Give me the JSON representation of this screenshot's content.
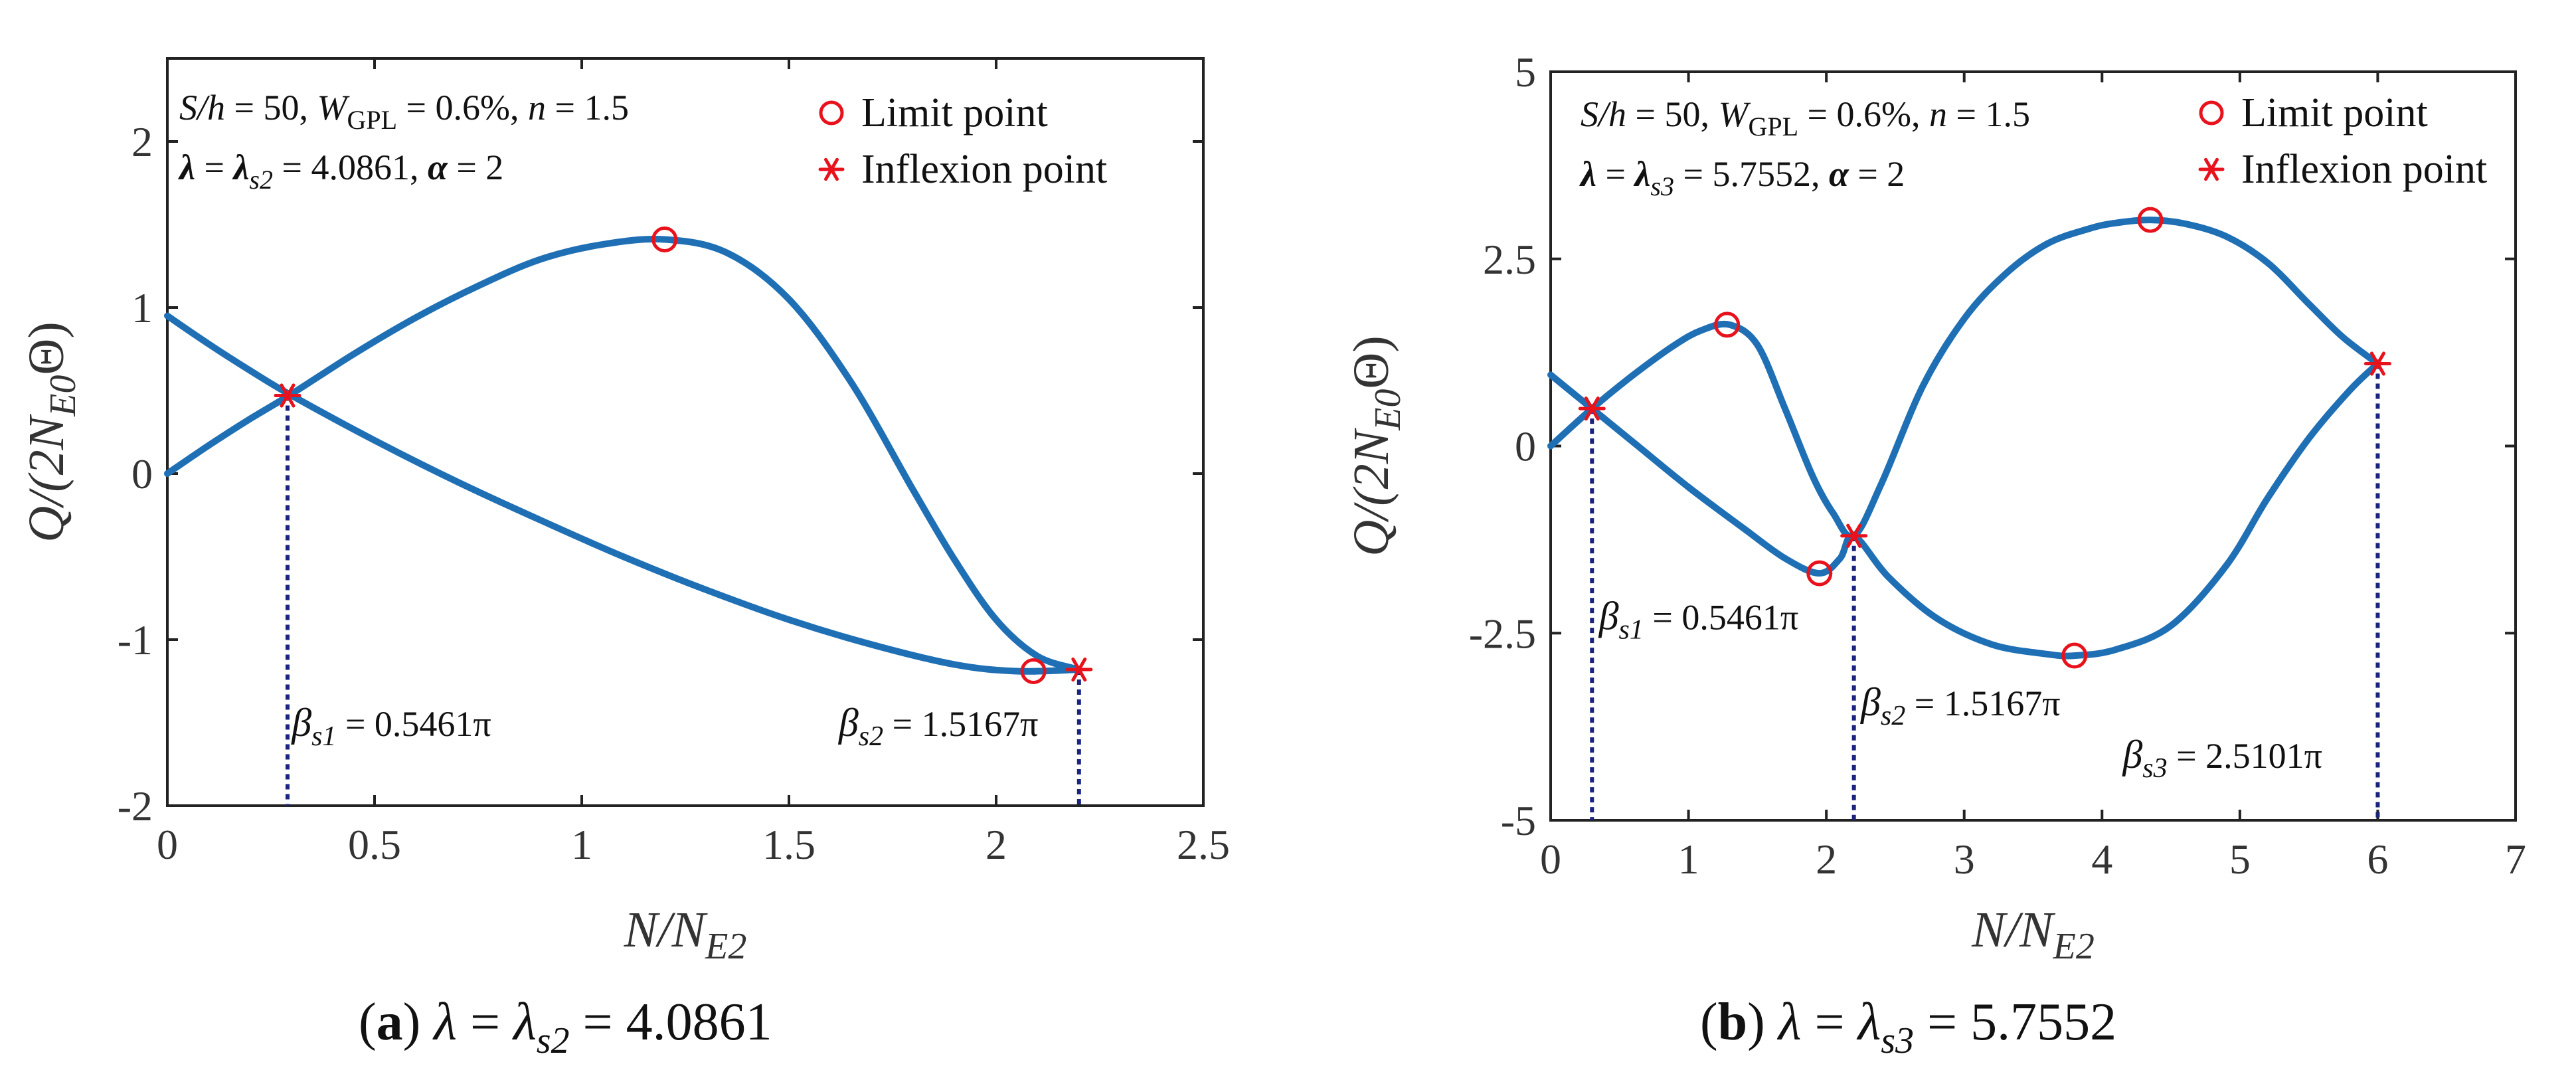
{
  "chart_data": [
    {
      "type": "line",
      "panel_label": "(a)",
      "caption_expression": "λ = λs2 = 4.0861",
      "caption_lambda_sub": "s2",
      "caption_value": "4.0861",
      "xlabel": "N/NE2",
      "ylabel": "Q/(2NE0Θ)",
      "xlim": [
        0,
        2.5
      ],
      "ylim": [
        -2,
        2.5
      ],
      "xticks": [
        0,
        0.5,
        1,
        1.5,
        2,
        2.5
      ],
      "xtick_labels": [
        "0",
        "0.5",
        "1",
        "1.5",
        "2",
        "2.5"
      ],
      "yticks": [
        -2,
        -1,
        0,
        1,
        2
      ],
      "ytick_labels": [
        "-2",
        "-1",
        "0",
        "1",
        "2"
      ],
      "annotation_params": "S/h = 50, WGPL = 0.6%, n = 1.5",
      "annotation_lambda": "λ = λs2 = 4.0861, α = 2",
      "annotation_lambda_sub": "s2",
      "annotation_lambda_value": "4.0861",
      "legend": [
        {
          "marker": "circle",
          "label": "Limit point"
        },
        {
          "marker": "star",
          "label": "Inflexion point"
        }
      ],
      "series": [
        {
          "name": "branch-upper",
          "x": [
            0,
            0.1,
            0.2,
            0.3,
            0.45,
            0.6,
            0.75,
            0.9,
            1.05,
            1.2,
            1.35,
            1.5,
            1.65,
            1.8,
            1.9,
            2.0,
            2.1,
            2.2
          ],
          "y": [
            0.0,
            0.17,
            0.33,
            0.48,
            0.72,
            0.94,
            1.13,
            1.29,
            1.38,
            1.41,
            1.33,
            1.05,
            0.55,
            -0.1,
            -0.52,
            -0.88,
            -1.1,
            -1.18
          ]
        },
        {
          "name": "branch-lower",
          "x": [
            0,
            0.1,
            0.2,
            0.3,
            0.5,
            0.7,
            0.9,
            1.1,
            1.3,
            1.5,
            1.7,
            1.9,
            2.05,
            2.2
          ],
          "y": [
            0.95,
            0.78,
            0.62,
            0.47,
            0.2,
            -0.05,
            -0.28,
            -0.5,
            -0.7,
            -0.88,
            -1.03,
            -1.15,
            -1.19,
            -1.18
          ]
        }
      ],
      "limit_points": [
        {
          "x": 1.2,
          "y": 1.41
        },
        {
          "x": 2.09,
          "y": -1.19
        }
      ],
      "inflexion_points": [
        {
          "x": 0.29,
          "y": 0.47
        },
        {
          "x": 2.2,
          "y": -1.18
        }
      ],
      "vertical_lines": [
        {
          "x": 0.29,
          "y_top": 0.47,
          "label": "βs1 = 0.5461π",
          "sub": "s1",
          "value": "0.5461π",
          "label_x": 0.3,
          "label_y": -1.58
        },
        {
          "x": 2.2,
          "y_top": -1.18,
          "label": "βs2 = 1.5167π",
          "sub": "s2",
          "value": "1.5167π",
          "label_x": 1.62,
          "label_y": -1.58
        }
      ]
    },
    {
      "type": "line",
      "panel_label": "(b)",
      "caption_expression": "λ = λs3 = 5.7552",
      "caption_lambda_sub": "s3",
      "caption_value": "5.7552",
      "xlabel": "N/NE2",
      "ylabel": "Q/(2NE0Θ)",
      "xlim": [
        0,
        7
      ],
      "ylim": [
        -5,
        5
      ],
      "xticks": [
        0,
        1,
        2,
        3,
        4,
        5,
        6,
        7
      ],
      "xtick_labels": [
        "0",
        "1",
        "2",
        "3",
        "4",
        "5",
        "6",
        "7"
      ],
      "yticks": [
        -5,
        -2.5,
        0,
        2.5,
        5
      ],
      "ytick_labels": [
        "-5",
        "-2.5",
        "0",
        "2.5",
        "5"
      ],
      "annotation_params": "S/h = 50, WGPL = 0.6%, n = 1.5",
      "annotation_lambda": "λ = λs3 = 5.7552, α = 2",
      "annotation_lambda_sub": "s3",
      "annotation_lambda_value": "5.7552",
      "legend": [
        {
          "marker": "circle",
          "label": "Limit point"
        },
        {
          "marker": "star",
          "label": "Inflexion point"
        }
      ],
      "series": [
        {
          "name": "branch-a",
          "x": [
            0,
            0.3,
            0.6,
            0.9,
            1.1,
            1.3,
            1.5,
            1.7,
            1.9,
            2.05,
            2.2,
            2.4,
            2.7,
            3.0,
            3.3,
            3.6,
            3.9,
            4.1,
            4.35,
            4.6,
            4.9,
            5.2,
            5.5,
            5.75,
            6.0
          ],
          "y": [
            0,
            0.5,
            0.95,
            1.35,
            1.55,
            1.62,
            1.35,
            0.5,
            -0.4,
            -0.9,
            -1.2,
            -0.5,
            0.8,
            1.7,
            2.3,
            2.7,
            2.9,
            2.98,
            3.02,
            2.97,
            2.8,
            2.45,
            1.9,
            1.45,
            1.1
          ]
        },
        {
          "name": "branch-b",
          "x": [
            0,
            0.3,
            0.6,
            1.0,
            1.4,
            1.7,
            1.95,
            2.1,
            2.2,
            2.45,
            2.8,
            3.2,
            3.6,
            3.8,
            4.1,
            4.5,
            4.9,
            5.2,
            5.5,
            5.8,
            6.0
          ],
          "y": [
            0.95,
            0.5,
            0.05,
            -0.55,
            -1.1,
            -1.5,
            -1.7,
            -1.5,
            -1.2,
            -1.75,
            -2.3,
            -2.65,
            -2.78,
            -2.8,
            -2.72,
            -2.4,
            -1.6,
            -0.7,
            0.1,
            0.75,
            1.1
          ]
        }
      ],
      "limit_points": [
        {
          "x": 1.28,
          "y": 1.62
        },
        {
          "x": 1.95,
          "y": -1.7
        },
        {
          "x": 3.8,
          "y": -2.8
        },
        {
          "x": 4.35,
          "y": 3.02
        }
      ],
      "inflexion_points": [
        {
          "x": 0.3,
          "y": 0.5
        },
        {
          "x": 2.2,
          "y": -1.2
        },
        {
          "x": 6.0,
          "y": 1.1
        }
      ],
      "vertical_lines": [
        {
          "x": 0.3,
          "y_top": 0.5,
          "label": "βs1 = 0.5461π",
          "sub": "s1",
          "value": "0.5461π",
          "label_x": 0.35,
          "label_y": -2.45
        },
        {
          "x": 2.2,
          "y_top": -1.2,
          "label": "βs2 = 1.5167π",
          "sub": "s2",
          "value": "1.5167π",
          "label_x": 2.25,
          "label_y": -3.6
        },
        {
          "x": 6.0,
          "y_top": 1.1,
          "label": "βs3 = 2.5101π",
          "sub": "s3",
          "value": "2.5101π",
          "label_x": 4.15,
          "label_y": -4.3
        }
      ]
    }
  ]
}
